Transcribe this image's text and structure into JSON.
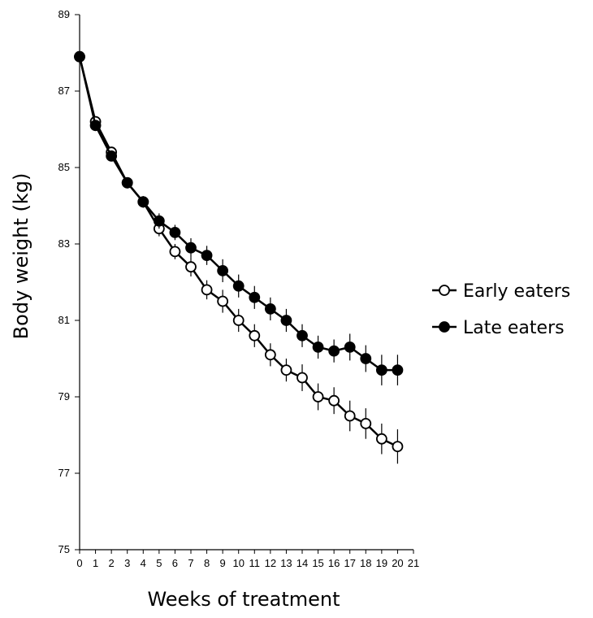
{
  "chart_data": {
    "type": "line",
    "xlabel": "Weeks of treatment",
    "ylabel": "Body weight (kg)",
    "xlim": [
      0,
      21
    ],
    "ylim": [
      75,
      89
    ],
    "xticks": [
      0,
      1,
      2,
      3,
      4,
      5,
      6,
      7,
      8,
      9,
      10,
      11,
      12,
      13,
      14,
      15,
      16,
      17,
      18,
      19,
      20,
      21
    ],
    "yticks": [
      75,
      77,
      79,
      81,
      83,
      85,
      87,
      89
    ],
    "grid": false,
    "legend_position": "right",
    "x": [
      0,
      1,
      2,
      3,
      4,
      5,
      6,
      7,
      8,
      9,
      10,
      11,
      12,
      13,
      14,
      15,
      16,
      17,
      18,
      19,
      20
    ],
    "series": [
      {
        "name": "Early eaters",
        "marker": "open-circle",
        "color": "#000000",
        "values": [
          87.9,
          86.2,
          85.4,
          84.6,
          84.1,
          83.4,
          82.8,
          82.4,
          81.8,
          81.5,
          81.0,
          80.6,
          80.1,
          79.7,
          79.5,
          79.0,
          78.9,
          78.5,
          78.3,
          77.9,
          77.7
        ],
        "error": [
          0,
          0.1,
          0.1,
          0.1,
          0.15,
          0.2,
          0.2,
          0.25,
          0.25,
          0.3,
          0.3,
          0.3,
          0.3,
          0.3,
          0.35,
          0.35,
          0.35,
          0.4,
          0.4,
          0.4,
          0.45
        ]
      },
      {
        "name": "Late eaters",
        "marker": "filled-circle",
        "color": "#000000",
        "values": [
          87.9,
          86.1,
          85.3,
          84.6,
          84.1,
          83.6,
          83.3,
          82.9,
          82.7,
          82.3,
          81.9,
          81.6,
          81.3,
          81.0,
          80.6,
          80.3,
          80.2,
          80.3,
          80.0,
          79.7,
          79.7
        ],
        "error": [
          0,
          0.1,
          0.1,
          0.1,
          0.15,
          0.2,
          0.2,
          0.25,
          0.25,
          0.3,
          0.3,
          0.3,
          0.3,
          0.3,
          0.3,
          0.3,
          0.3,
          0.35,
          0.35,
          0.4,
          0.4
        ]
      }
    ]
  }
}
